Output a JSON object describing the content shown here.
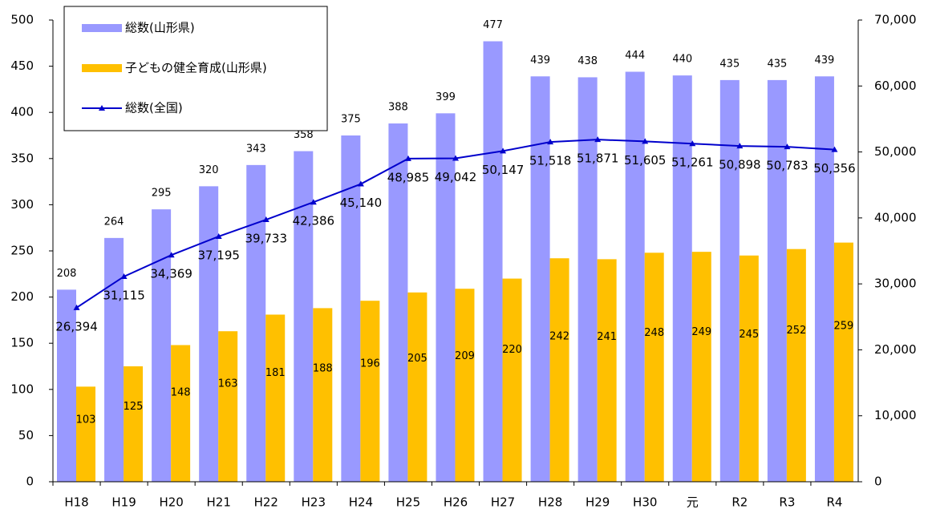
{
  "chart_data": {
    "type": "bar",
    "categories": [
      "H18",
      "H19",
      "H20",
      "H21",
      "H22",
      "H23",
      "H24",
      "H25",
      "H26",
      "H27",
      "H28",
      "H29",
      "H30",
      "元",
      "R2",
      "R3",
      "R4"
    ],
    "series": [
      {
        "name": "総数(山形県)",
        "color": "#9999ff",
        "values": [
          208,
          264,
          295,
          320,
          343,
          358,
          375,
          388,
          399,
          477,
          439,
          438,
          444,
          440,
          435,
          435,
          439
        ]
      },
      {
        "name": "子どもの健全育成(山形県)",
        "color": "#ffc000",
        "values": [
          103,
          125,
          148,
          163,
          181,
          188,
          196,
          205,
          209,
          220,
          242,
          241,
          248,
          249,
          245,
          252,
          259
        ]
      },
      {
        "name": "総数(全国)",
        "color": "#0000cc",
        "axis": "y2",
        "type": "line",
        "values": [
          26394,
          31115,
          34369,
          37195,
          39733,
          42386,
          45140,
          48985,
          49042,
          50147,
          51518,
          51871,
          51605,
          51261,
          50898,
          50783,
          50356
        ],
        "value_labels": [
          "26,394",
          "31,115",
          "34,369",
          "37,195",
          "39,733",
          "42,386",
          "45,140",
          "48,985",
          "49,042",
          "50,147",
          "51,518",
          "51,871",
          "51,605",
          "51,261",
          "50,898",
          "50,783",
          "50,356"
        ]
      }
    ],
    "ylim": [
      0,
      500
    ],
    "yticks": [
      0,
      50,
      100,
      150,
      200,
      250,
      300,
      350,
      400,
      450,
      500
    ],
    "y2lim": [
      0,
      70000
    ],
    "y2ticks": [
      0,
      {
        "value": 10000,
        "label": "10,000"
      },
      {
        "value": 20000,
        "label": "20,000"
      },
      {
        "value": 30000,
        "label": "30,000"
      },
      {
        "value": 40000,
        "label": "40,000"
      },
      {
        "value": 50000,
        "label": "50,000"
      },
      {
        "value": 60000,
        "label": "60,000"
      },
      {
        "value": 70000,
        "label": "70,000"
      }
    ]
  }
}
